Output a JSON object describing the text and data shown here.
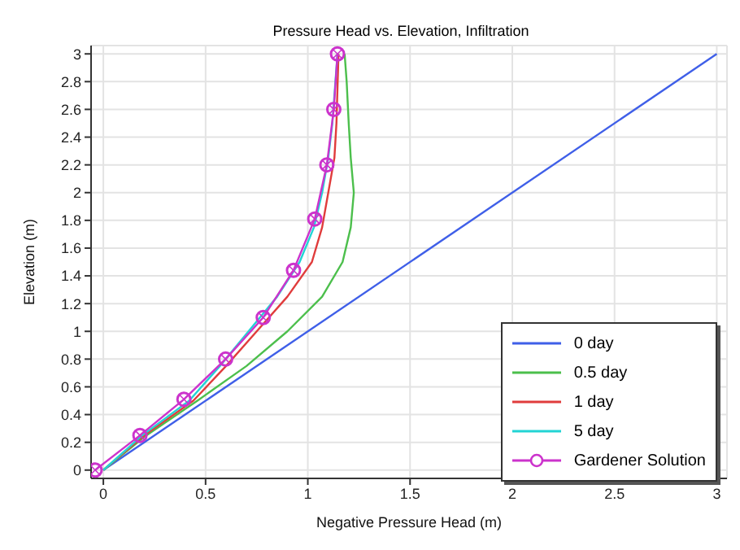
{
  "chart_data": {
    "type": "line",
    "title": "Pressure Head vs. Elevation, Infiltration",
    "xlabel": "Negative Pressure Head (m)",
    "ylabel": "Elevation (m)",
    "xlim": [
      -0.06,
      3.05
    ],
    "ylim": [
      -0.06,
      3.06
    ],
    "xticks": [
      0,
      0.5,
      1,
      1.5,
      2,
      2.5,
      3
    ],
    "yticks": [
      0,
      0.2,
      0.4,
      0.6,
      0.8,
      1,
      1.2,
      1.4,
      1.6,
      1.8,
      2,
      2.2,
      2.4,
      2.6,
      2.8,
      3
    ],
    "grid": true,
    "legend": "bottom right",
    "line_style": "solid",
    "marker": "none",
    "series": [
      {
        "name": "0 day",
        "color": "#3f5fe8",
        "x": [
          0,
          3
        ],
        "values": [
          0,
          3
        ]
      },
      {
        "name": "0.5 day",
        "color": "#4cbf4c",
        "x": [
          0,
          0.21,
          0.46,
          0.7,
          0.9,
          1.07,
          1.17,
          1.21,
          1.225,
          1.21,
          1.2,
          1.19,
          1.18
        ],
        "values": [
          0,
          0.25,
          0.5,
          0.75,
          1,
          1.25,
          1.5,
          1.75,
          2,
          2.25,
          2.5,
          2.8,
          3
        ]
      },
      {
        "name": "1 day",
        "color": "#e03c3c",
        "x": [
          0,
          0.2,
          0.44,
          0.6,
          0.75,
          0.9,
          1.02,
          1.07,
          1.1,
          1.13,
          1.14,
          1.15
        ],
        "values": [
          0,
          0.25,
          0.5,
          0.75,
          1,
          1.25,
          1.5,
          1.75,
          2,
          2.25,
          2.5,
          3
        ]
      },
      {
        "name": "5 day",
        "color": "#22d4d4",
        "x": [
          0,
          0.19,
          0.42,
          0.57,
          0.71,
          0.85,
          0.96,
          1.03,
          1.07,
          1.1,
          1.12,
          1.145
        ],
        "values": [
          0,
          0.25,
          0.5,
          0.75,
          1,
          1.25,
          1.5,
          1.75,
          2,
          2.25,
          2.5,
          3
        ]
      },
      {
        "name": "Gardener Solution",
        "color": "#cc33cc",
        "marker": "circle",
        "x": [
          -0.04,
          0.179,
          0.394,
          0.598,
          0.782,
          0.93,
          1.034,
          1.093,
          1.127,
          1.145
        ],
        "values": [
          0,
          0.25,
          0.51,
          0.8,
          1.1,
          1.44,
          1.81,
          2.2,
          2.6,
          3
        ]
      }
    ]
  }
}
